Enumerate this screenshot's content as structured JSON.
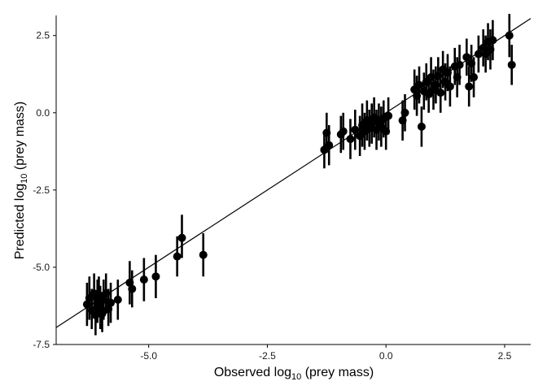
{
  "chart_data": {
    "type": "scatter",
    "title": "",
    "xlabel": {
      "prefix": "Observed log",
      "sub": "10",
      "suffix": " (prey mass)"
    },
    "ylabel": {
      "prefix": "Predicted log",
      "sub": "10",
      "suffix": " (prey mass)"
    },
    "xlim": [
      -6.95,
      3.05
    ],
    "ylim": [
      -7.5,
      3.15
    ],
    "x_ticks": [
      -5.0,
      -2.5,
      0.0,
      2.5
    ],
    "x_tick_labels": [
      "-5.0",
      "-2.5",
      "0.0",
      "2.5"
    ],
    "y_ticks": [
      -7.5,
      -5.0,
      -2.5,
      0.0,
      2.5
    ],
    "y_tick_labels": [
      "-7.5",
      "-5.0",
      "-2.5",
      "0.0",
      "2.5"
    ],
    "grid": false,
    "legend": "none",
    "reference_line": {
      "type": "identity",
      "slope": 1,
      "intercept": 0
    },
    "point_color": "#000000",
    "points": [
      {
        "x": -6.3,
        "y": -6.2,
        "lo": -6.9,
        "hi": -5.5
      },
      {
        "x": -6.25,
        "y": -6.0,
        "lo": -6.7,
        "hi": -5.3
      },
      {
        "x": -6.2,
        "y": -6.4,
        "lo": -7.0,
        "hi": -5.7
      },
      {
        "x": -6.15,
        "y": -5.85,
        "lo": -6.5,
        "hi": -5.2
      },
      {
        "x": -6.12,
        "y": -6.55,
        "lo": -7.2,
        "hi": -5.9
      },
      {
        "x": -6.08,
        "y": -6.1,
        "lo": -6.8,
        "hi": -5.4
      },
      {
        "x": -6.05,
        "y": -5.95,
        "lo": -6.6,
        "hi": -5.3
      },
      {
        "x": -6.02,
        "y": -6.3,
        "lo": -7.0,
        "hi": -5.6
      },
      {
        "x": -5.98,
        "y": -6.5,
        "lo": -7.1,
        "hi": -5.8
      },
      {
        "x": -5.95,
        "y": -6.05,
        "lo": -6.7,
        "hi": -5.4
      },
      {
        "x": -5.9,
        "y": -5.85,
        "lo": -6.5,
        "hi": -5.2
      },
      {
        "x": -5.85,
        "y": -6.35,
        "lo": -6.9,
        "hi": -5.7
      },
      {
        "x": -5.8,
        "y": -6.15,
        "lo": -6.8,
        "hi": -5.5
      },
      {
        "x": -5.65,
        "y": -6.05,
        "lo": -6.7,
        "hi": -5.4
      },
      {
        "x": -5.4,
        "y": -5.5,
        "lo": -6.2,
        "hi": -4.8
      },
      {
        "x": -5.35,
        "y": -5.7,
        "lo": -6.3,
        "hi": -5.1
      },
      {
        "x": -5.1,
        "y": -5.4,
        "lo": -6.1,
        "hi": -4.7
      },
      {
        "x": -4.85,
        "y": -5.3,
        "lo": -6.0,
        "hi": -4.6
      },
      {
        "x": -4.4,
        "y": -4.65,
        "lo": -5.3,
        "hi": -4.0
      },
      {
        "x": -4.3,
        "y": -4.05,
        "lo": -4.7,
        "hi": -3.3
      },
      {
        "x": -3.85,
        "y": -4.6,
        "lo": -5.3,
        "hi": -3.9
      },
      {
        "x": -1.3,
        "y": -1.2,
        "lo": -1.8,
        "hi": -0.6
      },
      {
        "x": -1.25,
        "y": -0.65,
        "lo": -1.3,
        "hi": 0.0
      },
      {
        "x": -1.2,
        "y": -1.05,
        "lo": -1.7,
        "hi": -0.4
      },
      {
        "x": -0.95,
        "y": -0.7,
        "lo": -1.3,
        "hi": -0.1
      },
      {
        "x": -0.9,
        "y": -0.6,
        "lo": -1.2,
        "hi": 0.0
      },
      {
        "x": -0.75,
        "y": -0.85,
        "lo": -1.5,
        "hi": -0.2
      },
      {
        "x": -0.65,
        "y": -0.55,
        "lo": -1.2,
        "hi": 0.1
      },
      {
        "x": -0.55,
        "y": -0.75,
        "lo": -1.4,
        "hi": -0.1
      },
      {
        "x": -0.5,
        "y": -0.4,
        "lo": -1.1,
        "hi": 0.3
      },
      {
        "x": -0.45,
        "y": -0.6,
        "lo": -1.2,
        "hi": 0.0
      },
      {
        "x": -0.4,
        "y": -0.25,
        "lo": -0.9,
        "hi": 0.4
      },
      {
        "x": -0.35,
        "y": -0.5,
        "lo": -1.1,
        "hi": 0.1
      },
      {
        "x": -0.3,
        "y": -0.35,
        "lo": -1.0,
        "hi": 0.3
      },
      {
        "x": -0.25,
        "y": -0.15,
        "lo": -0.8,
        "hi": 0.5
      },
      {
        "x": -0.2,
        "y": -0.55,
        "lo": -1.2,
        "hi": 0.1
      },
      {
        "x": -0.15,
        "y": -0.3,
        "lo": -0.9,
        "hi": 0.3
      },
      {
        "x": -0.1,
        "y": -0.45,
        "lo": -1.1,
        "hi": 0.2
      },
      {
        "x": -0.05,
        "y": -0.2,
        "lo": -0.8,
        "hi": 0.4
      },
      {
        "x": 0.0,
        "y": -0.6,
        "lo": -1.2,
        "hi": 0.0
      },
      {
        "x": 0.05,
        "y": -0.1,
        "lo": -0.7,
        "hi": 0.5
      },
      {
        "x": 0.35,
        "y": -0.25,
        "lo": -0.9,
        "hi": 0.4
      },
      {
        "x": 0.4,
        "y": 0.0,
        "lo": -0.6,
        "hi": 0.6
      },
      {
        "x": 0.6,
        "y": 0.75,
        "lo": 0.1,
        "hi": 1.4
      },
      {
        "x": 0.65,
        "y": 0.55,
        "lo": -0.1,
        "hi": 1.2
      },
      {
        "x": 0.7,
        "y": 0.9,
        "lo": 0.3,
        "hi": 1.5
      },
      {
        "x": 0.75,
        "y": -0.45,
        "lo": -1.1,
        "hi": 0.2
      },
      {
        "x": 0.8,
        "y": 0.7,
        "lo": 0.1,
        "hi": 1.3
      },
      {
        "x": 0.85,
        "y": 1.0,
        "lo": 0.4,
        "hi": 1.6
      },
      {
        "x": 0.9,
        "y": 0.6,
        "lo": 0.0,
        "hi": 1.2
      },
      {
        "x": 0.95,
        "y": 1.15,
        "lo": 0.5,
        "hi": 1.8
      },
      {
        "x": 1.0,
        "y": 0.75,
        "lo": 0.1,
        "hi": 1.4
      },
      {
        "x": 1.05,
        "y": 0.9,
        "lo": 0.3,
        "hi": 1.5
      },
      {
        "x": 1.1,
        "y": 1.2,
        "lo": 0.6,
        "hi": 1.8
      },
      {
        "x": 1.15,
        "y": 0.65,
        "lo": 0.0,
        "hi": 1.3
      },
      {
        "x": 1.2,
        "y": 1.4,
        "lo": 0.8,
        "hi": 2.0
      },
      {
        "x": 1.25,
        "y": 1.0,
        "lo": 0.4,
        "hi": 1.6
      },
      {
        "x": 1.3,
        "y": 1.3,
        "lo": 0.7,
        "hi": 1.9
      },
      {
        "x": 1.35,
        "y": 0.85,
        "lo": 0.2,
        "hi": 1.5
      },
      {
        "x": 1.45,
        "y": 1.5,
        "lo": 0.9,
        "hi": 2.1
      },
      {
        "x": 1.5,
        "y": 1.15,
        "lo": 0.5,
        "hi": 1.8
      },
      {
        "x": 1.55,
        "y": 1.55,
        "lo": 0.9,
        "hi": 2.2
      },
      {
        "x": 1.7,
        "y": 1.8,
        "lo": 1.2,
        "hi": 2.4
      },
      {
        "x": 1.75,
        "y": 0.85,
        "lo": 0.2,
        "hi": 1.5
      },
      {
        "x": 1.8,
        "y": 1.6,
        "lo": 1.0,
        "hi": 2.2
      },
      {
        "x": 1.85,
        "y": 1.15,
        "lo": 0.5,
        "hi": 1.8
      },
      {
        "x": 1.95,
        "y": 1.9,
        "lo": 1.3,
        "hi": 2.5
      },
      {
        "x": 2.05,
        "y": 2.1,
        "lo": 1.5,
        "hi": 2.7
      },
      {
        "x": 2.1,
        "y": 1.9,
        "lo": 1.3,
        "hi": 2.5
      },
      {
        "x": 2.15,
        "y": 2.3,
        "lo": 1.7,
        "hi": 2.9
      },
      {
        "x": 2.2,
        "y": 2.05,
        "lo": 1.4,
        "hi": 2.7
      },
      {
        "x": 2.25,
        "y": 2.35,
        "lo": 1.7,
        "hi": 3.0
      },
      {
        "x": 2.6,
        "y": 2.5,
        "lo": 1.8,
        "hi": 3.2
      },
      {
        "x": 2.65,
        "y": 1.55,
        "lo": 0.9,
        "hi": 2.2
      }
    ]
  }
}
